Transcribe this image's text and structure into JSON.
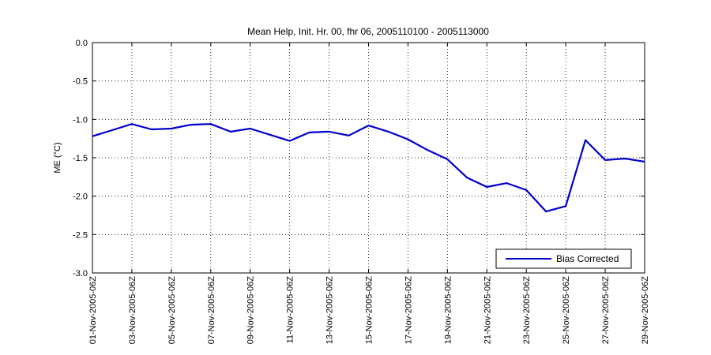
{
  "chart_data": {
    "type": "line",
    "title": "Mean Help, Init. Hr. 00, fhr 06, 2005110100 - 2005113000",
    "xlabel": "",
    "ylabel": "ME (°C)",
    "ylim": [
      -3.0,
      0.0
    ],
    "yticks": [
      "0.0",
      "-0.5",
      "-1.0",
      "-1.5",
      "-2.0",
      "-2.5",
      "-3.0"
    ],
    "xticks": [
      "01-Nov-2005-06Z",
      "03-Nov-2005-06Z",
      "05-Nov-2005-06Z",
      "07-Nov-2005-06Z",
      "09-Nov-2005-06Z",
      "11-Nov-2005-06Z",
      "13-Nov-2005-06Z",
      "15-Nov-2005-06Z",
      "17-Nov-2005-06Z",
      "19-Nov-2005-06Z",
      "21-Nov-2005-06Z",
      "23-Nov-2005-06Z",
      "25-Nov-2005-06Z",
      "27-Nov-2005-06Z",
      "29-Nov-2005-06Z"
    ],
    "grid": true,
    "legend_position": "bottom-right",
    "series": [
      {
        "name": "Bias Corrected",
        "color": "#0000cc",
        "values": [
          -1.22,
          -1.14,
          -1.06,
          -1.13,
          -1.12,
          -1.07,
          -1.06,
          -1.16,
          -1.12,
          -1.2,
          -1.28,
          -1.17,
          -1.16,
          -1.21,
          -1.08,
          -1.16,
          -1.26,
          -1.4,
          -1.52,
          -1.76,
          -1.88,
          -1.83,
          -1.92,
          -2.2,
          -2.13,
          -1.27,
          -1.53,
          -1.51,
          -1.55
        ]
      }
    ]
  }
}
